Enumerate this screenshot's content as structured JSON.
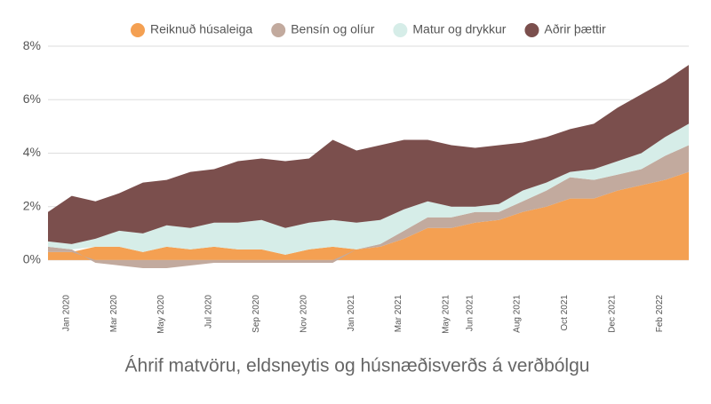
{
  "chart_data": {
    "type": "stacked_area",
    "title": "Áhrif matvöru, eldsneytis og húsnæðisverðs á verðbólgu",
    "categories": [
      null,
      "Jan 2020",
      null,
      "Mar 2020",
      null,
      "May 2020",
      null,
      "Jul 2020",
      null,
      "Sep 2020",
      null,
      "Nov 2020",
      null,
      "Jan 2021",
      null,
      "Mar 2021",
      null,
      "May 2021",
      "Jun 2021",
      null,
      "Aug 2021",
      null,
      "Oct 2021",
      null,
      "Dec 2021",
      null,
      "Feb 2022",
      null
    ],
    "series": [
      {
        "name": "Reiknuð húsaleiga",
        "color": "#f4a052",
        "values": [
          0.3,
          0.3,
          0.5,
          0.5,
          0.3,
          0.5,
          0.4,
          0.5,
          0.4,
          0.4,
          0.2,
          0.4,
          0.5,
          0.4,
          0.5,
          0.8,
          1.2,
          1.2,
          1.4,
          1.5,
          1.8,
          2.0,
          2.3,
          2.3,
          2.6,
          2.8,
          3.0,
          3.3
        ]
      },
      {
        "name": "Bensín og olíur",
        "color": "#c2aa9e",
        "values": [
          0.2,
          0.1,
          -0.1,
          -0.2,
          -0.3,
          -0.3,
          -0.2,
          -0.1,
          -0.1,
          -0.1,
          -0.1,
          -0.1,
          -0.1,
          0.0,
          0.1,
          0.3,
          0.4,
          0.4,
          0.4,
          0.3,
          0.4,
          0.6,
          0.8,
          0.7,
          0.6,
          0.6,
          0.9,
          1.0
        ]
      },
      {
        "name": "Matur og drykkur",
        "color": "#d6ede8",
        "values": [
          0.2,
          0.2,
          0.3,
          0.6,
          0.7,
          0.8,
          0.8,
          0.9,
          1.0,
          1.1,
          1.0,
          1.0,
          1.0,
          1.0,
          0.9,
          0.8,
          0.6,
          0.4,
          0.2,
          0.3,
          0.4,
          0.3,
          0.2,
          0.4,
          0.5,
          0.6,
          0.7,
          0.8
        ]
      },
      {
        "name": "Aðrir þættir",
        "color": "#7b4f4d",
        "values": [
          1.1,
          1.8,
          1.4,
          1.4,
          1.9,
          1.7,
          2.1,
          2.0,
          2.3,
          2.3,
          2.5,
          2.4,
          3.0,
          2.7,
          2.8,
          2.6,
          2.3,
          2.3,
          2.2,
          2.2,
          1.8,
          1.7,
          1.6,
          1.7,
          2.0,
          2.2,
          2.1,
          2.2
        ]
      }
    ],
    "ylim": [
      -0.6,
      8.5
    ],
    "yticks": [
      {
        "value": 0,
        "label": "0%"
      },
      {
        "value": 2,
        "label": "2%"
      },
      {
        "value": 4,
        "label": "4%"
      },
      {
        "value": 6,
        "label": "6%"
      },
      {
        "value": 8,
        "label": "8%"
      }
    ],
    "grid": true
  }
}
